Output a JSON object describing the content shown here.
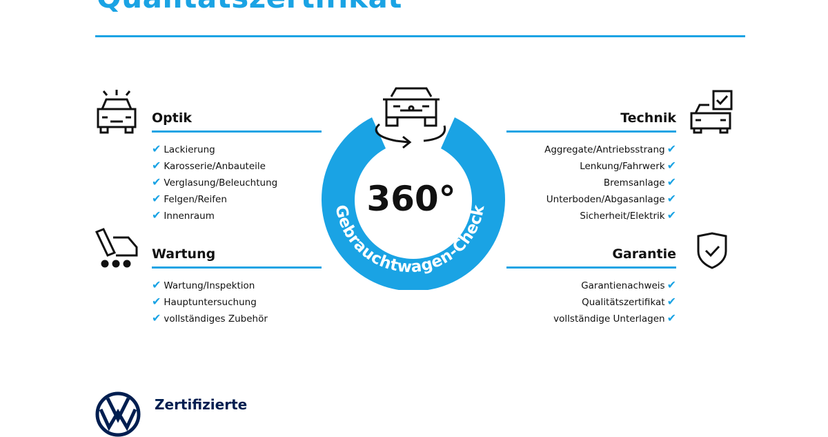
{
  "title": "Qualitätszertifikat",
  "center": {
    "number": "360°",
    "ring_text": "Gebrauchtwagen-Check"
  },
  "sections": {
    "optik": {
      "heading": "Optik",
      "items": [
        "Lackierung",
        "Karosserie/Anbauteile",
        "Verglasung/Beleuchtung",
        "Felgen/Reifen",
        "Innenraum"
      ]
    },
    "wartung": {
      "heading": "Wartung",
      "items": [
        "Wartung/Inspektion",
        "Hauptuntersuchung",
        "vollständiges Zubehör"
      ]
    },
    "technik": {
      "heading": "Technik",
      "items": [
        "Aggregate/Antriebsstrang",
        "Lenkung/Fahrwerk",
        "Bremsanlage",
        "Unterboden/Abgasanlage",
        "Sicherheit/Elektrik"
      ]
    },
    "garantie": {
      "heading": "Garantie",
      "items": [
        "Garantienachweis",
        "Qualitätszertifikat",
        "vollständige Unterlagen"
      ]
    }
  },
  "check_glyph": "✔",
  "footer": {
    "brand_text": "Zertifizierte",
    "logo": "VW"
  },
  "colors": {
    "accent": "#1aa3e4",
    "navy": "#001e50"
  }
}
